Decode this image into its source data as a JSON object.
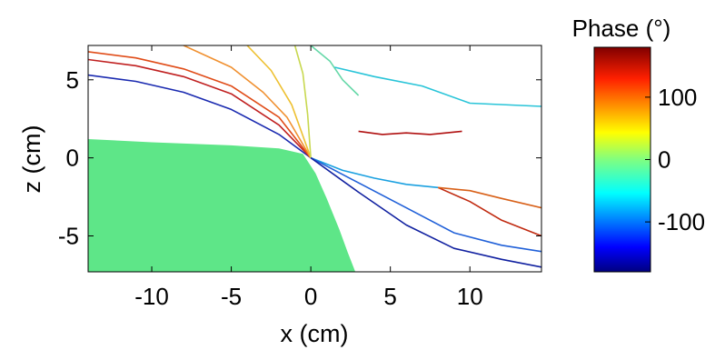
{
  "chart_data": {
    "type": "contour",
    "xlabel": "x (cm)",
    "ylabel": "z (cm)",
    "xlim": [
      -14,
      14.5
    ],
    "ylim": [
      -7.3,
      7.2
    ],
    "x_ticks": [
      -10,
      -5,
      0,
      5,
      10
    ],
    "y_ticks": [
      5,
      0,
      -5
    ],
    "colorbar": {
      "title": "Phase (°)",
      "range": [
        -180,
        180
      ],
      "ticks": [
        100,
        0,
        -100
      ],
      "colormap": "jet"
    },
    "object_region": {
      "color": "#5ee688",
      "outline_x": [
        -14,
        -14,
        -10,
        -5,
        -2,
        -0.5,
        0.3,
        1.0,
        1.8,
        2.3,
        2.8
      ],
      "outline_z": [
        -7.3,
        1.2,
        1.0,
        0.8,
        0.6,
        0.25,
        -1.0,
        -2.6,
        -4.6,
        -6.0,
        -7.3
      ]
    },
    "contour_levels": [
      {
        "phase": -170,
        "color": "#1a2ab0",
        "x": [
          -14,
          -11,
          -8,
          -5,
          -2,
          0
        ],
        "z": [
          5.3,
          4.9,
          4.2,
          3.1,
          1.5,
          0
        ]
      },
      {
        "phase": 170,
        "color": "#c02020",
        "x": [
          -14,
          -11,
          -8,
          -5,
          -2,
          0
        ],
        "z": [
          6.3,
          5.9,
          5.2,
          4.1,
          2.1,
          0
        ]
      },
      {
        "phase": 130,
        "color": "#e04c18",
        "x": [
          -14,
          -11,
          -8,
          -5,
          -2,
          0
        ],
        "z": [
          6.8,
          6.4,
          5.7,
          4.6,
          2.6,
          0
        ]
      },
      {
        "phase": 80,
        "color": "#f09030",
        "x": [
          -8,
          -5,
          -3,
          -1.5,
          0
        ],
        "z": [
          7.2,
          5.8,
          4.2,
          2.6,
          0
        ]
      },
      {
        "phase": 40,
        "color": "#eec030",
        "x": [
          -4,
          -2.5,
          -1.2,
          0
        ],
        "z": [
          7.2,
          5.6,
          3.4,
          0
        ]
      },
      {
        "phase": 10,
        "color": "#c8d850",
        "x": [
          -1,
          -0.5,
          -0.2,
          0
        ],
        "z": [
          7.2,
          5.4,
          2.8,
          0
        ]
      },
      {
        "phase": -20,
        "color": "#66d8a8",
        "x": [
          0,
          1.2,
          2,
          3
        ],
        "z": [
          7.2,
          6.2,
          5,
          4
        ]
      },
      {
        "phase": -50,
        "color": "#28c4d8",
        "x": [
          1.5,
          4,
          7,
          10,
          14.5
        ],
        "z": [
          5.8,
          5.2,
          4.6,
          3.5,
          3.3
        ]
      },
      {
        "phase": -80,
        "color": "#1aa0e0",
        "x": [
          0,
          2,
          4,
          6,
          8
        ],
        "z": [
          0,
          -0.8,
          -1.3,
          -1.7,
          -1.9
        ]
      },
      {
        "phase": -110,
        "color": "#2060d8",
        "x": [
          0,
          3,
          6,
          9,
          12,
          14.5
        ],
        "z": [
          0,
          -1.6,
          -3.2,
          -4.8,
          -5.6,
          -6
        ]
      },
      {
        "phase": -150,
        "color": "#1020a0",
        "x": [
          0,
          3,
          6,
          9,
          12,
          14.5
        ],
        "z": [
          0,
          -2.2,
          -4.3,
          -5.8,
          -6.5,
          -7
        ]
      },
      {
        "phase": 150,
        "color": "#c02a10",
        "x": [
          8,
          10,
          12,
          14.5
        ],
        "z": [
          -1.9,
          -2.8,
          -4.0,
          -5.0
        ]
      },
      {
        "phase": 100,
        "color": "#d86018",
        "x": [
          8,
          10,
          12,
          14.5
        ],
        "z": [
          -1.9,
          -2.1,
          -2.6,
          -3.2
        ]
      },
      {
        "phase": 180,
        "color": "#b01010",
        "x": [
          3,
          4.5,
          6,
          7.5,
          9.5
        ],
        "z": [
          1.7,
          1.5,
          1.6,
          1.5,
          1.7
        ]
      }
    ]
  }
}
